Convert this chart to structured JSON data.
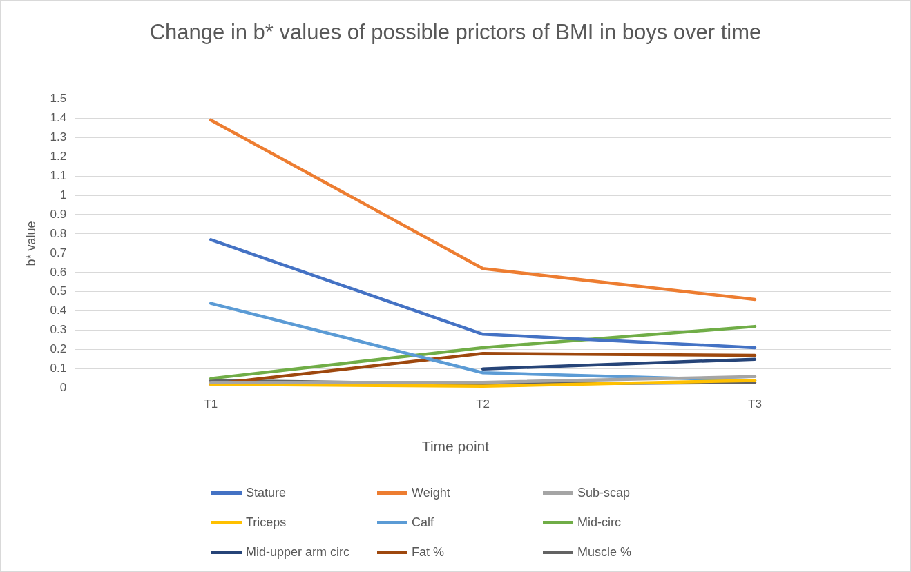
{
  "chart_data": {
    "type": "line",
    "title": "Change in b* values of possible prictors of BMI in boys over time",
    "xlabel": "Time point",
    "ylabel": "b* value",
    "categories": [
      "T1",
      "T2",
      "T3"
    ],
    "series": [
      {
        "name": "Stature",
        "color": "#4472c4",
        "values": [
          0.77,
          0.28,
          0.21
        ]
      },
      {
        "name": "Weight",
        "color": "#ed7d31",
        "values": [
          1.39,
          0.62,
          0.46
        ]
      },
      {
        "name": "Sub-scap",
        "color": "#a5a5a5",
        "values": [
          0.03,
          0.03,
          0.06
        ]
      },
      {
        "name": "Triceps",
        "color": "#ffc000",
        "values": [
          0.02,
          0.01,
          0.04
        ]
      },
      {
        "name": "Calf",
        "color": "#5b9bd5",
        "values": [
          0.44,
          0.08,
          0.04
        ]
      },
      {
        "name": "Mid-circ",
        "color": "#70ad47",
        "values": [
          0.05,
          0.21,
          0.32
        ]
      },
      {
        "name": "Mid-upper arm circ",
        "color": "#264478",
        "values": [
          null,
          0.1,
          0.15
        ]
      },
      {
        "name": "Fat %",
        "color": "#9e480e",
        "values": [
          0.02,
          0.18,
          0.17
        ]
      },
      {
        "name": "Muscle %",
        "color": "#636363",
        "values": [
          0.04,
          0.02,
          0.03
        ]
      }
    ],
    "ylim": [
      0,
      1.5
    ],
    "yticks": [
      0,
      0.1,
      0.2,
      0.3,
      0.4,
      0.5,
      0.6,
      0.7,
      0.8,
      0.9,
      1,
      1.1,
      1.2,
      1.3,
      1.4,
      1.5
    ],
    "grid": "y",
    "legend": "bottom",
    "marker": "none",
    "line_style": "solid"
  }
}
